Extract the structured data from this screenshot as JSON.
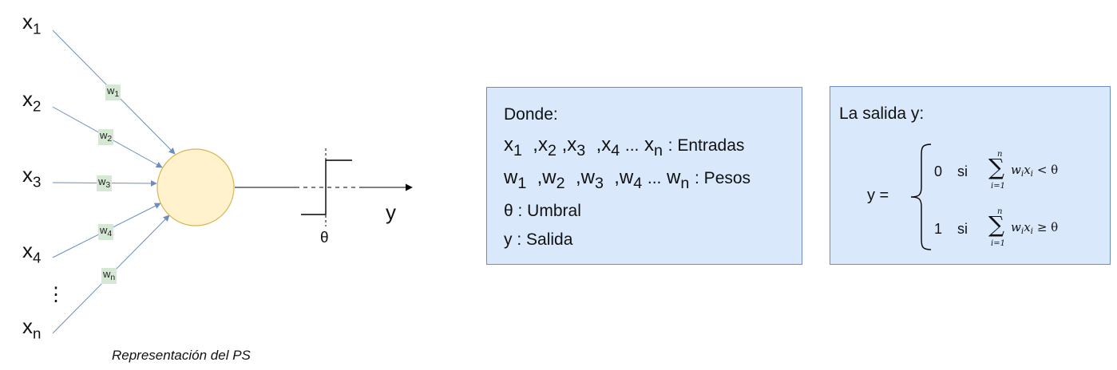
{
  "diagram": {
    "inputs": [
      {
        "base": "x",
        "sub": "1"
      },
      {
        "base": "x",
        "sub": "2"
      },
      {
        "base": "x",
        "sub": "3"
      },
      {
        "base": "x",
        "sub": "4"
      },
      {
        "base": "x",
        "sub": "n"
      }
    ],
    "ellipsis": "⋮",
    "weights": [
      {
        "base": "w",
        "sub": "1"
      },
      {
        "base": "w",
        "sub": "2"
      },
      {
        "base": "w",
        "sub": "3"
      },
      {
        "base": "w",
        "sub": "4"
      },
      {
        "base": "w",
        "sub": "n"
      }
    ],
    "output_label": "y",
    "threshold_label": "θ",
    "caption": "Representación del PS",
    "colors": {
      "neuron_fill": "#fff2cc",
      "neuron_stroke": "#d6b656",
      "edge": "#6c8ebf",
      "weight_bg": "#d5e8d4",
      "box_fill": "#dae8fc",
      "box_stroke": "#6c8ebf"
    }
  },
  "legend": {
    "title": "Donde:",
    "inputs_line": {
      "items": [
        {
          "base": "x",
          "sub": "1"
        },
        {
          "base": ",x",
          "sub": "2"
        },
        {
          "base": ",x",
          "sub": "3"
        },
        {
          "base": ",x",
          "sub": "4"
        }
      ],
      "dots": "...",
      "last": {
        "base": "x",
        "sub": "n"
      },
      "tail": ": Entradas"
    },
    "weights_line": {
      "items": [
        {
          "base": "w",
          "sub": "1"
        },
        {
          "base": ",w",
          "sub": "2"
        },
        {
          "base": ",w",
          "sub": "3"
        },
        {
          "base": ",w",
          "sub": "4"
        }
      ],
      "dots": "...",
      "last": {
        "base": "w",
        "sub": "n"
      },
      "tail": ": Pesos"
    },
    "threshold_line": "θ : Umbral",
    "output_line": "y : Salida"
  },
  "output_box": {
    "title": "La salida y:",
    "lhs": "y =",
    "cases": [
      {
        "value": "0",
        "word": "si",
        "sum_upper": "n",
        "sum_lower": "i=1",
        "term": "w",
        "term_sub": "i",
        "term2": "x",
        "term2_sub": "i",
        "relation": "< θ"
      },
      {
        "value": "1",
        "word": "si",
        "sum_upper": "n",
        "sum_lower": "i=1",
        "term": "w",
        "term_sub": "i",
        "term2": "x",
        "term2_sub": "i",
        "relation": "≥ θ"
      }
    ]
  }
}
